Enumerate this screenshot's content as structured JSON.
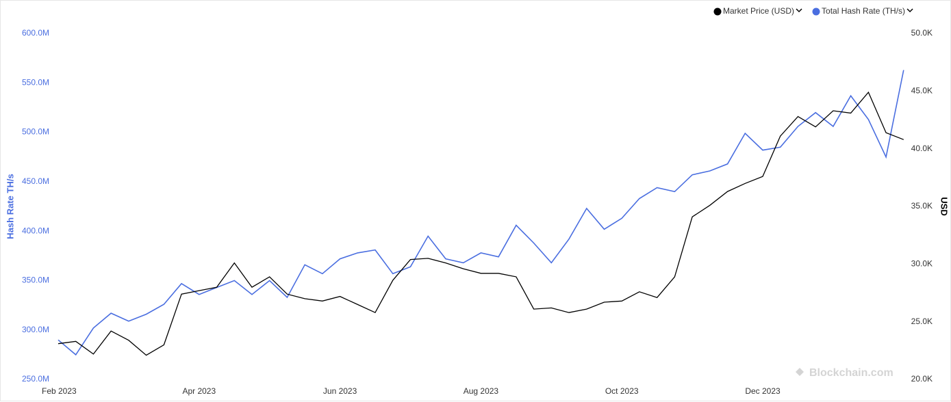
{
  "chart_data": {
    "type": "line",
    "y_label": "Hash Rate TH/s",
    "y2_label": "USD",
    "watermark": "Blockchain.com",
    "categories": [
      "Feb 2023",
      null,
      null,
      null,
      null,
      null,
      null,
      null,
      "Apr 2023",
      null,
      null,
      null,
      null,
      null,
      null,
      null,
      "Jun 2023",
      null,
      null,
      null,
      null,
      null,
      null,
      null,
      "Aug 2023",
      null,
      null,
      null,
      null,
      null,
      null,
      null,
      "Oct 2023",
      null,
      null,
      null,
      null,
      null,
      null,
      null,
      "Dec 2023",
      null,
      null,
      null,
      null,
      null,
      null,
      null,
      null
    ],
    "series": [
      {
        "name": "Market Price (USD)",
        "color": "#000000",
        "axis": "y2",
        "values": [
          23100,
          23300,
          22200,
          24200,
          23400,
          22100,
          23000,
          27400,
          27700,
          28000,
          30100,
          28000,
          28900,
          27400,
          27000,
          26800,
          27200,
          26500,
          25800,
          28600,
          30400,
          30500,
          30100,
          29600,
          29200,
          29200,
          28900,
          26100,
          26200,
          25800,
          26100,
          26700,
          26800,
          27600,
          27100,
          28900,
          34100,
          35100,
          36300,
          37000,
          37600,
          41100,
          42800,
          41900,
          43300,
          43100,
          44900,
          41400,
          40800
        ]
      },
      {
        "name": "Total Hash Rate (TH/s)",
        "color": "#4a6ee0",
        "values": [
          290000000,
          275000000,
          302000000,
          317000000,
          309000000,
          316000000,
          326000000,
          347000000,
          336000000,
          343000000,
          350000000,
          336000000,
          350000000,
          333000000,
          366000000,
          357000000,
          372000000,
          378000000,
          381000000,
          357000000,
          364000000,
          395000000,
          372000000,
          368000000,
          378000000,
          374000000,
          406000000,
          388000000,
          368000000,
          392000000,
          423000000,
          402000000,
          413000000,
          433000000,
          444000000,
          440000000,
          457000000,
          461000000,
          468000000,
          499000000,
          482000000,
          485000000,
          506000000,
          520000000,
          506000000,
          537000000,
          513000000,
          475000000,
          563000000
        ]
      }
    ],
    "ylim": [
      250000000,
      600000000
    ],
    "yticks": [
      {
        "value": 250000000,
        "label": "250.0M"
      },
      {
        "value": 300000000,
        "label": "300.0M"
      },
      {
        "value": 350000000,
        "label": "350.0M"
      },
      {
        "value": 400000000,
        "label": "400.0M"
      },
      {
        "value": 450000000,
        "label": "450.0M"
      },
      {
        "value": 500000000,
        "label": "500.0M"
      },
      {
        "value": 550000000,
        "label": "550.0M"
      },
      {
        "value": 600000000,
        "label": "600.0M"
      }
    ],
    "y2lim": [
      20000,
      50000
    ],
    "y2ticks": [
      {
        "value": 20000,
        "label": "20.0K"
      },
      {
        "value": 25000,
        "label": "25.0K"
      },
      {
        "value": 30000,
        "label": "30.0K"
      },
      {
        "value": 35000,
        "label": "35.0K"
      },
      {
        "value": 40000,
        "label": "40.0K"
      },
      {
        "value": 45000,
        "label": "45.0K"
      },
      {
        "value": 50000,
        "label": "50.0K"
      }
    ],
    "legend": "top-right"
  }
}
